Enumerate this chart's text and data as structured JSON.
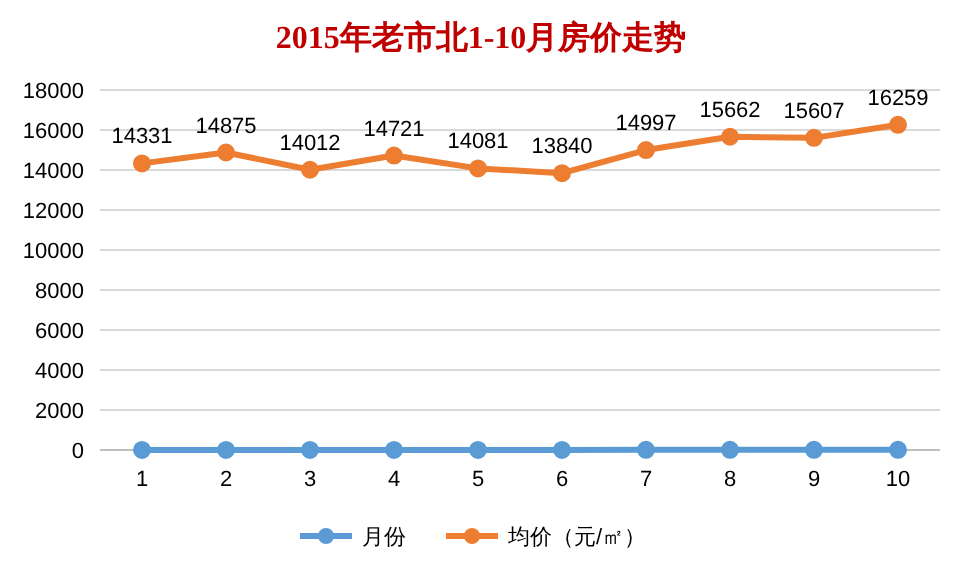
{
  "chart_data": {
    "type": "line",
    "title": "2015年老市北1-10月房价走势",
    "categories": [
      "1",
      "2",
      "3",
      "4",
      "5",
      "6",
      "7",
      "8",
      "9",
      "10"
    ],
    "series": [
      {
        "name": "月份",
        "color": "#5b9bd5",
        "values": [
          1,
          2,
          3,
          4,
          5,
          6,
          7,
          8,
          9,
          10
        ]
      },
      {
        "name": "均价（元/㎡）",
        "color": "#ed7d31",
        "values": [
          14331,
          14875,
          14012,
          14721,
          14081,
          13840,
          14997,
          15662,
          15607,
          16259
        ],
        "value_labels": [
          "14331",
          "14875",
          "14012",
          "14721",
          "14081",
          "13840",
          "14997",
          "15662",
          "15607",
          "16259"
        ]
      }
    ],
    "ylim": [
      0,
      18000
    ],
    "yticks": [
      0,
      2000,
      4000,
      6000,
      8000,
      10000,
      12000,
      14000,
      16000,
      18000
    ],
    "grid": "y",
    "legend": "bottom",
    "marker": "circle",
    "line_style": "solid"
  }
}
